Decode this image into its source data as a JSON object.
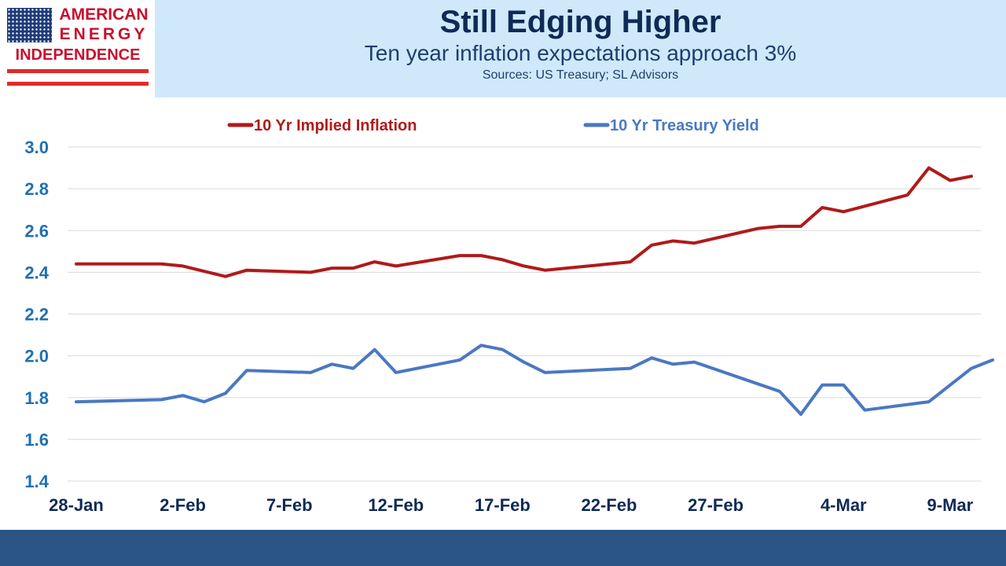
{
  "header": {
    "title": "Still Edging Higher",
    "subtitle": "Ten year inflation expectations approach 3%",
    "sources": "Sources: US Treasury; SL Advisors"
  },
  "logo": {
    "line1": "AMERICAN",
    "line2": "ENERGY",
    "line3": "INDEPENDENCE"
  },
  "colors": {
    "inflation": "#b01a1a",
    "treasury": "#4a78c2",
    "header_bg": "#cfe9fb",
    "footer_bg": "#2a5585"
  },
  "chart_data": {
    "type": "line",
    "title": "",
    "xlabel": "",
    "ylabel": "",
    "ylim": [
      1.4,
      3.0
    ],
    "yticks": [
      1.4,
      1.6,
      1.8,
      2.0,
      2.2,
      2.4,
      2.6,
      2.8,
      3.0
    ],
    "ytick_labels": [
      "1.4",
      "1.6",
      "1.8",
      "2.0",
      "2.2",
      "2.4",
      "2.6",
      "2.8",
      "3.0"
    ],
    "xlim": [
      "2016-01-28",
      "2016-03-10"
    ],
    "xtick_dates": [
      "2016-01-28",
      "2016-02-02",
      "2016-02-07",
      "2016-02-12",
      "2016-02-17",
      "2016-02-22",
      "2016-02-27",
      "2016-03-04",
      "2016-03-09"
    ],
    "xtick_labels": [
      "28-Jan",
      "2-Feb",
      "7-Feb",
      "12-Feb",
      "17-Feb",
      "22-Feb",
      "27-Feb",
      "4-Mar",
      "9-Mar"
    ],
    "grid": true,
    "legend_position": "top",
    "series": [
      {
        "name": "10 Yr Implied Inflation",
        "color": "#b01a1a",
        "points": [
          [
            "2016-01-28",
            2.44
          ],
          [
            "2016-02-01",
            2.44
          ],
          [
            "2016-02-02",
            2.43
          ],
          [
            "2016-02-04",
            2.38
          ],
          [
            "2016-02-05",
            2.41
          ],
          [
            "2016-02-08",
            2.4
          ],
          [
            "2016-02-09",
            2.42
          ],
          [
            "2016-02-10",
            2.42
          ],
          [
            "2016-02-11",
            2.45
          ],
          [
            "2016-02-12",
            2.43
          ],
          [
            "2016-02-15",
            2.48
          ],
          [
            "2016-02-16",
            2.48
          ],
          [
            "2016-02-17",
            2.46
          ],
          [
            "2016-02-18",
            2.43
          ],
          [
            "2016-02-19",
            2.41
          ],
          [
            "2016-02-22",
            2.44
          ],
          [
            "2016-02-23",
            2.45
          ],
          [
            "2016-02-24",
            2.53
          ],
          [
            "2016-02-25",
            2.55
          ],
          [
            "2016-02-26",
            2.54
          ],
          [
            "2016-02-29",
            2.61
          ],
          [
            "2016-03-01",
            2.62
          ],
          [
            "2016-03-02",
            2.62
          ],
          [
            "2016-03-03",
            2.71
          ],
          [
            "2016-03-04",
            2.69
          ],
          [
            "2016-03-07",
            2.77
          ],
          [
            "2016-03-08",
            2.9
          ],
          [
            "2016-03-09",
            2.84
          ],
          [
            "2016-03-10",
            2.86
          ]
        ]
      },
      {
        "name": "10 Yr Treasury Yield",
        "color": "#4a78c2",
        "points": [
          [
            "2016-01-28",
            1.78
          ],
          [
            "2016-02-01",
            1.79
          ],
          [
            "2016-02-02",
            1.81
          ],
          [
            "2016-02-03",
            1.78
          ],
          [
            "2016-02-04",
            1.82
          ],
          [
            "2016-02-05",
            1.93
          ],
          [
            "2016-02-08",
            1.92
          ],
          [
            "2016-02-09",
            1.96
          ],
          [
            "2016-02-10",
            1.94
          ],
          [
            "2016-02-11",
            2.03
          ],
          [
            "2016-02-12",
            1.92
          ],
          [
            "2016-02-15",
            1.98
          ],
          [
            "2016-02-16",
            2.05
          ],
          [
            "2016-02-17",
            2.03
          ],
          [
            "2016-02-18",
            1.97
          ],
          [
            "2016-02-19",
            1.92
          ],
          [
            "2016-02-23",
            1.94
          ],
          [
            "2016-02-24",
            1.99
          ],
          [
            "2016-02-25",
            1.96
          ],
          [
            "2016-02-26",
            1.97
          ],
          [
            "2016-03-01",
            1.83
          ],
          [
            "2016-03-02",
            1.72
          ],
          [
            "2016-03-03",
            1.86
          ],
          [
            "2016-03-04",
            1.86
          ],
          [
            "2016-03-05",
            1.74
          ],
          [
            "2016-03-08",
            1.78
          ],
          [
            "2016-03-09",
            1.86
          ],
          [
            "2016-03-10",
            1.94
          ],
          [
            "2016-03-11",
            1.98
          ]
        ]
      }
    ]
  }
}
